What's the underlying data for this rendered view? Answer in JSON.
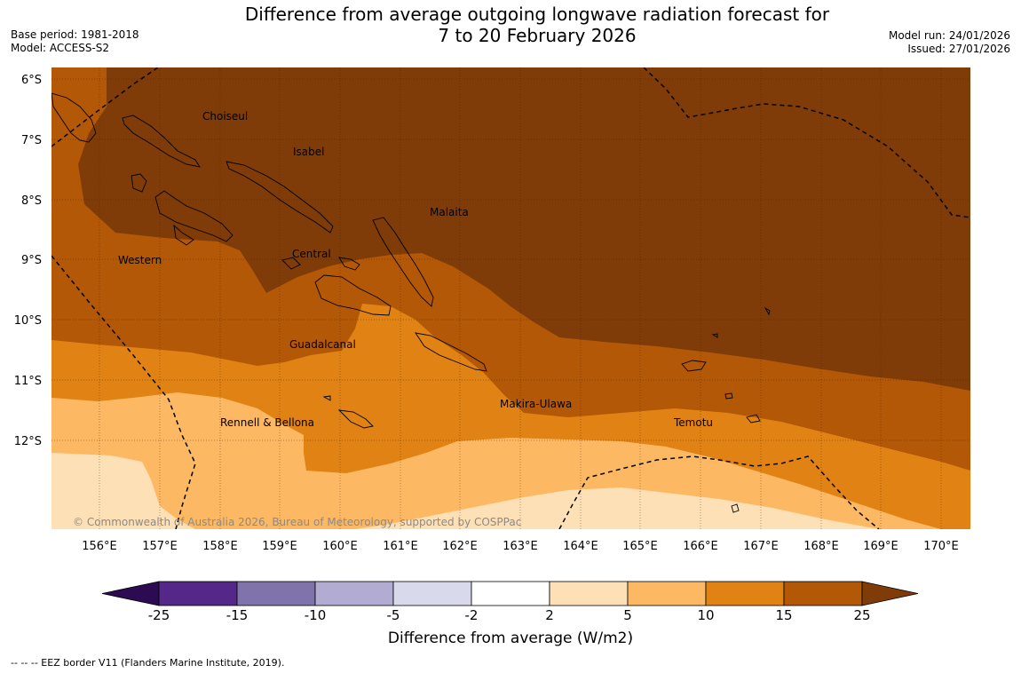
{
  "title": {
    "line1": "Difference from average outgoing longwave radiation forecast for",
    "line2": "7 to 20 February 2026"
  },
  "meta": {
    "base_period": "Base period: 1981-2018",
    "model": "Model: ACCESS-S2",
    "model_run": "Model run: 24/01/2026",
    "issued": "Issued: 27/01/2026"
  },
  "map": {
    "lat_labels": [
      "6°S",
      "7°S",
      "8°S",
      "9°S",
      "10°S",
      "11°S",
      "12°S"
    ],
    "lon_labels": [
      "156°E",
      "157°E",
      "158°E",
      "159°E",
      "160°E",
      "161°E",
      "162°E",
      "163°E",
      "164°E",
      "165°E",
      "166°E",
      "167°E",
      "168°E",
      "169°E",
      "170°E"
    ],
    "provinces": [
      "Choiseul",
      "Isabel",
      "Malaita",
      "Central",
      "Western",
      "Guadalcanal",
      "Makira-Ulawa",
      "Rennell & Bellona",
      "Temotu"
    ],
    "copyright": "© Commonwealth of Australia 2026, Bureau of Meteorology, supported by COSPPac"
  },
  "colorbar": {
    "levels": [
      "-25",
      "-15",
      "-10",
      "-5",
      "-2",
      "2",
      "5",
      "10",
      "15",
      "25"
    ],
    "colors": [
      "#2d0b52",
      "#542788",
      "#8073ac",
      "#b2abd2",
      "#d8daeb",
      "#ffffff",
      "#fee0b6",
      "#fdb863",
      "#e08214",
      "#b35806",
      "#7f3b08"
    ],
    "title": "Difference from average (W/m2)"
  },
  "footer": "--  --  -- EEZ border V11 (Flanders Marine Institute, 2019)."
}
